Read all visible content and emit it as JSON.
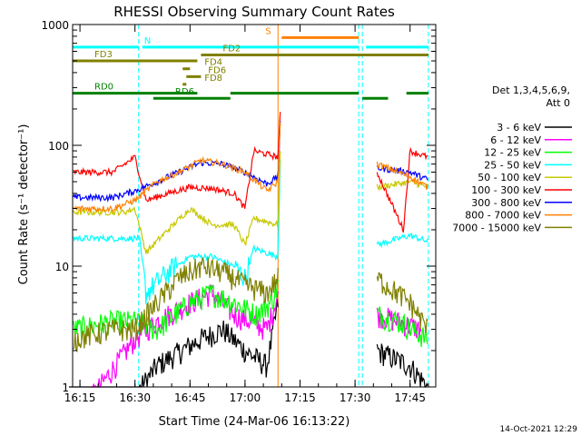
{
  "chart_data": {
    "type": "line",
    "title": "RHESSI Observing Summary Count Rates",
    "xlabel": "Start Time (24-Mar-06 16:13:22)",
    "ylabel": "Count Rate (s⁻¹ detector⁻¹)",
    "y_scale": "log",
    "xlim": [
      "16:13",
      "17:52"
    ],
    "ylim": [
      1,
      1000
    ],
    "x_ticks": [
      "16:15",
      "16:30",
      "16:45",
      "17:00",
      "17:15",
      "17:30",
      "17:45"
    ],
    "y_ticks": [
      "1",
      "10",
      "100",
      "1000"
    ],
    "legend_title": [
      "Det 1,3,4,5,6,9,",
      "Att 0"
    ],
    "legend_position": "right",
    "footer": "14-Oct-2021 12:29",
    "flag_lines": [
      {
        "label": "N",
        "color": "#00ffff",
        "level": 650,
        "segments": [
          [
            "16:13",
            "16:31"
          ],
          [
            "16:32",
            "17:31"
          ],
          [
            "17:33",
            "17:50"
          ]
        ]
      },
      {
        "label": "S",
        "color": "#ff8000",
        "level": 780,
        "segments": [
          [
            "17:10",
            "17:31"
          ]
        ]
      },
      {
        "label": "FD2",
        "color": "#808000",
        "level": 560,
        "segments": [
          [
            "16:48",
            "17:50"
          ]
        ]
      },
      {
        "label": "FD3",
        "color": "#808000",
        "level": 500,
        "segments": [
          [
            "16:13",
            "16:47"
          ]
        ]
      },
      {
        "label": "FD4",
        "color": "#808000",
        "level": 430,
        "segments": [
          [
            "16:43",
            "16:45"
          ]
        ]
      },
      {
        "label": "FD6",
        "color": "#808000",
        "level": 370,
        "segments": [
          [
            "16:44",
            "16:48"
          ]
        ]
      },
      {
        "label": "FD8",
        "color": "#808000",
        "level": 320,
        "segments": [
          [
            "16:43",
            "16:44"
          ]
        ]
      },
      {
        "label": "RD0",
        "color": "#008000",
        "level": 270,
        "segments": [
          [
            "16:13",
            "16:47"
          ],
          [
            "16:56",
            "17:31"
          ],
          [
            "17:44",
            "17:50"
          ]
        ]
      },
      {
        "label": "RD6",
        "color": "#008000",
        "level": 245,
        "segments": [
          [
            "16:35",
            "16:56"
          ],
          [
            "17:32",
            "17:39"
          ]
        ]
      }
    ],
    "vertical_markers": [
      {
        "time": "16:31",
        "color": "#00ffff",
        "style": "dashed"
      },
      {
        "time": "17:09",
        "color": "#ff8000",
        "style": "solid"
      },
      {
        "time": "17:31",
        "color": "#00ffff",
        "style": "dashed"
      },
      {
        "time": "17:32",
        "color": "#00ffff",
        "style": "dashed"
      },
      {
        "time": "17:50",
        "color": "#00ffff",
        "style": "dashed"
      }
    ],
    "segments": [
      [
        "16:13",
        "17:09"
      ],
      [
        "17:36",
        "17:50"
      ]
    ],
    "series": [
      {
        "name": "3 - 6 keV",
        "color": "#000000",
        "seg1": [
          [
            16.2,
            0.8
          ],
          [
            16.4,
            0.8
          ],
          [
            16.5,
            0.85
          ],
          [
            16.6,
            1.5
          ],
          [
            16.8,
            2.5
          ],
          [
            16.9,
            3
          ],
          [
            17.0,
            2
          ],
          [
            17.1,
            1.5
          ],
          [
            17.15,
            5
          ]
        ],
        "seg2": [
          [
            17.6,
            2
          ],
          [
            17.75,
            1.5
          ],
          [
            17.83,
            1
          ]
        ]
      },
      {
        "name": "6 - 12 keV",
        "color": "#ff00ff",
        "seg1": [
          [
            16.3,
            0.8
          ],
          [
            16.5,
            2.5
          ],
          [
            16.6,
            3.5
          ],
          [
            16.75,
            5
          ],
          [
            16.85,
            6
          ],
          [
            16.95,
            4
          ],
          [
            17.1,
            3
          ],
          [
            17.15,
            6
          ]
        ],
        "seg2": [
          [
            17.6,
            4
          ],
          [
            17.8,
            3
          ]
        ]
      },
      {
        "name": "12 - 25 keV",
        "color": "#00ff00",
        "seg1": [
          [
            16.22,
            3
          ],
          [
            16.4,
            3.5
          ],
          [
            16.5,
            3.5
          ],
          [
            16.6,
            3
          ],
          [
            16.75,
            5
          ],
          [
            16.85,
            6
          ],
          [
            16.95,
            5
          ],
          [
            17.05,
            4
          ],
          [
            17.12,
            5
          ],
          [
            17.15,
            7
          ]
        ],
        "seg2": [
          [
            17.6,
            4
          ],
          [
            17.7,
            3.5
          ],
          [
            17.83,
            2.5
          ]
        ]
      },
      {
        "name": "25 - 50 keV",
        "color": "#00ffff",
        "seg1": [
          [
            16.22,
            17
          ],
          [
            16.45,
            17
          ],
          [
            16.52,
            17
          ],
          [
            16.55,
            6
          ],
          [
            16.65,
            9
          ],
          [
            16.75,
            12
          ],
          [
            16.85,
            12
          ],
          [
            16.95,
            10
          ],
          [
            17.0,
            8
          ],
          [
            17.04,
            14
          ],
          [
            17.15,
            12
          ],
          [
            17.16,
            80
          ]
        ],
        "seg2": [
          [
            17.6,
            15
          ],
          [
            17.75,
            18
          ],
          [
            17.83,
            16
          ]
        ]
      },
      {
        "name": "50 - 100 keV",
        "color": "#c8c800",
        "seg1": [
          [
            16.22,
            28
          ],
          [
            16.45,
            28
          ],
          [
            16.5,
            30
          ],
          [
            16.55,
            13
          ],
          [
            16.65,
            20
          ],
          [
            16.75,
            30
          ],
          [
            16.85,
            22
          ],
          [
            16.95,
            22
          ],
          [
            17.0,
            15
          ],
          [
            17.04,
            25
          ],
          [
            17.15,
            22
          ],
          [
            17.16,
            90
          ]
        ],
        "seg2": [
          [
            17.6,
            45
          ],
          [
            17.75,
            50
          ],
          [
            17.83,
            45
          ]
        ]
      },
      {
        "name": "100 - 300 keV",
        "color": "#ff0000",
        "seg1": [
          [
            16.22,
            60
          ],
          [
            16.4,
            60
          ],
          [
            16.5,
            80
          ],
          [
            16.55,
            35
          ],
          [
            16.65,
            40
          ],
          [
            16.75,
            45
          ],
          [
            16.85,
            44
          ],
          [
            16.95,
            40
          ],
          [
            17.0,
            30
          ],
          [
            17.04,
            90
          ],
          [
            17.15,
            80
          ],
          [
            17.16,
            180
          ]
        ],
        "seg2": [
          [
            17.6,
            60
          ],
          [
            17.72,
            20
          ],
          [
            17.75,
            90
          ],
          [
            17.83,
            80
          ]
        ]
      },
      {
        "name": "300 - 800 keV",
        "color": "#0000ff",
        "seg1": [
          [
            16.22,
            37
          ],
          [
            16.4,
            37
          ],
          [
            16.5,
            42
          ],
          [
            16.6,
            50
          ],
          [
            16.7,
            60
          ],
          [
            16.8,
            72
          ],
          [
            16.9,
            70
          ],
          [
            17.0,
            60
          ],
          [
            17.1,
            48
          ],
          [
            17.15,
            55
          ],
          [
            17.16,
            150
          ]
        ],
        "seg2": [
          [
            17.6,
            65
          ],
          [
            17.75,
            60
          ],
          [
            17.83,
            52
          ]
        ]
      },
      {
        "name": "800 - 7000 keV",
        "color": "#ff8000",
        "seg1": [
          [
            16.22,
            30
          ],
          [
            16.4,
            30
          ],
          [
            16.5,
            35
          ],
          [
            16.6,
            50
          ],
          [
            16.7,
            60
          ],
          [
            16.8,
            75
          ],
          [
            16.9,
            70
          ],
          [
            17.0,
            60
          ],
          [
            17.1,
            42
          ],
          [
            17.15,
            50
          ],
          [
            17.16,
            160
          ]
        ],
        "seg2": [
          [
            17.6,
            70
          ],
          [
            17.75,
            55
          ],
          [
            17.83,
            45
          ]
        ]
      },
      {
        "name": "7000 - 15000 keV",
        "color": "#808000",
        "seg1": [
          [
            16.22,
            2.5
          ],
          [
            16.4,
            3
          ],
          [
            16.5,
            3
          ],
          [
            16.6,
            5
          ],
          [
            16.7,
            8
          ],
          [
            16.8,
            10
          ],
          [
            16.9,
            9
          ],
          [
            17.0,
            7
          ],
          [
            17.1,
            6
          ],
          [
            17.15,
            8
          ]
        ],
        "seg2": [
          [
            17.6,
            8
          ],
          [
            17.75,
            5
          ],
          [
            17.83,
            3
          ]
        ]
      }
    ]
  }
}
